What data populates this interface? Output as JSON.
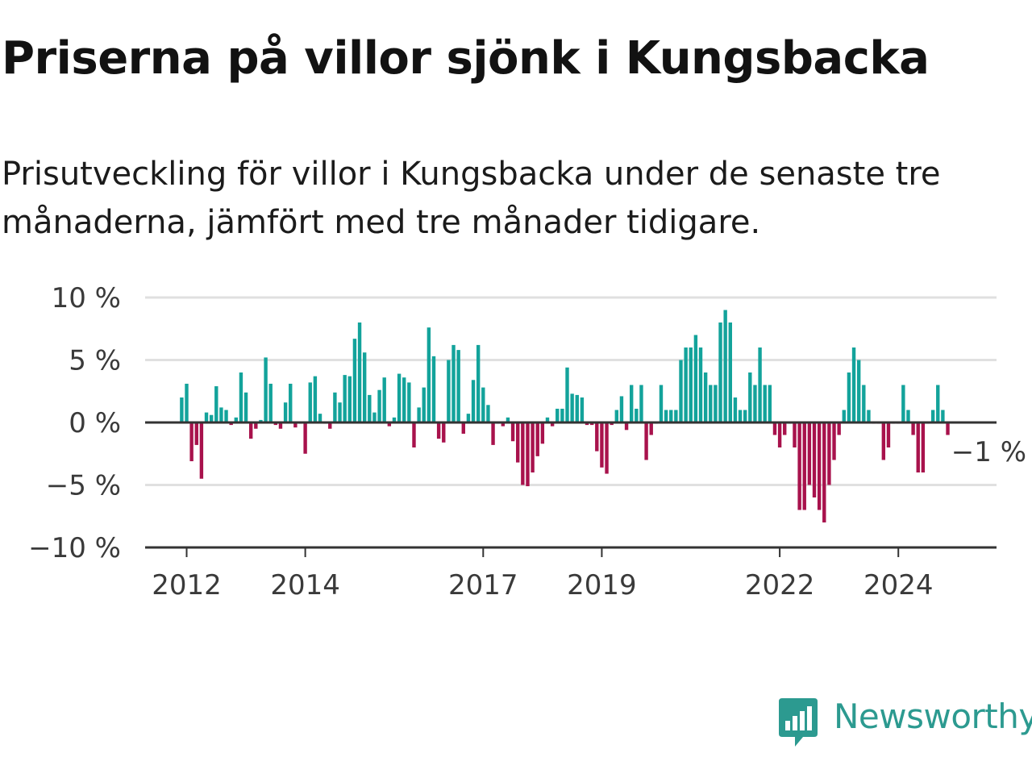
{
  "title": "Priserna på villor sjönk i Kungsbacka",
  "subtitle": "Prisutveckling för villor i Kungsbacka under de senaste tre månaderna, jämfört med tre månader tidigare.",
  "brand": {
    "name": "Newsworthy",
    "color": "#2c9a90",
    "icon": "newsworthy-logo-icon"
  },
  "colors": {
    "positive": "#13a39b",
    "negative": "#a8124c",
    "grid": "#e0e0e0",
    "axis": "#333333"
  },
  "chart_data": {
    "type": "bar",
    "y_ticks": [
      {
        "value": 10,
        "label": "10 %"
      },
      {
        "value": 5,
        "label": "5 %"
      },
      {
        "value": 0,
        "label": "0 %"
      },
      {
        "value": -5,
        "label": "−5 %"
      },
      {
        "value": -10,
        "label": "−10 %"
      }
    ],
    "ylim": [
      -10,
      10
    ],
    "x_ticks": [
      {
        "date": "2012-01",
        "label": "2012"
      },
      {
        "date": "2014-01",
        "label": "2014"
      },
      {
        "date": "2017-01",
        "label": "2017"
      },
      {
        "date": "2019-01",
        "label": "2019"
      },
      {
        "date": "2022-01",
        "label": "2022"
      },
      {
        "date": "2024-01",
        "label": "2024"
      }
    ],
    "x_start": "2011-12",
    "x_end": "2025-03",
    "annotation": {
      "date": "2025-01",
      "text": "−1 %"
    },
    "values": [
      2.0,
      3.1,
      -3.1,
      -1.8,
      -4.5,
      0.8,
      0.6,
      2.9,
      1.2,
      1.0,
      -0.2,
      0.4,
      4.0,
      2.4,
      -1.3,
      -0.5,
      0.2,
      5.2,
      3.1,
      -0.2,
      -0.5,
      1.6,
      3.1,
      -0.4,
      -0.1,
      -2.5,
      3.2,
      3.7,
      0.7,
      -0.1,
      -0.5,
      2.4,
      1.6,
      3.8,
      3.7,
      6.7,
      8.0,
      5.6,
      2.2,
      0.8,
      2.6,
      3.6,
      -0.3,
      0.4,
      3.9,
      3.6,
      3.2,
      -2.0,
      1.2,
      2.8,
      7.6,
      5.3,
      -1.3,
      -1.6,
      5.0,
      6.2,
      5.8,
      -0.9,
      0.7,
      3.4,
      6.2,
      2.8,
      1.4,
      -1.8,
      -0.1,
      -0.3,
      0.4,
      -1.5,
      -3.2,
      -5.0,
      -5.1,
      -4.0,
      -2.7,
      -1.7,
      0.4,
      -0.3,
      1.1,
      1.1,
      4.4,
      2.3,
      2.2,
      2.0,
      -0.2,
      -0.2,
      -2.3,
      -3.6,
      -4.1,
      -0.2,
      1.0,
      2.1,
      -0.6,
      3.0,
      1.1,
      3.0,
      -3.0,
      -1.0,
      -0.1,
      3.0,
      1.0,
      1.0,
      1.0,
      5.0,
      6.0,
      6.0,
      7.0,
      6.0,
      4.0,
      3.0,
      3.0,
      8.0,
      9.0,
      8.0,
      2.0,
      1.0,
      1.0,
      4.0,
      3.0,
      6.0,
      3.0,
      3.0,
      -1.0,
      -2.0,
      -1.0,
      -0.1,
      -2.0,
      -7.0,
      -7.0,
      -5.0,
      -6.0,
      -7.0,
      -8.0,
      -5.0,
      -3.0,
      -1.0,
      1.0,
      4.0,
      6.0,
      5.0,
      3.0,
      1.0,
      -0.1,
      -0.1,
      -3.0,
      -2.0,
      -0.1,
      -0.1,
      3.0,
      1.0,
      -1.0,
      -4.0,
      -4.0,
      -0.1,
      1.0,
      3.0,
      1.0,
      -1.0
    ]
  }
}
